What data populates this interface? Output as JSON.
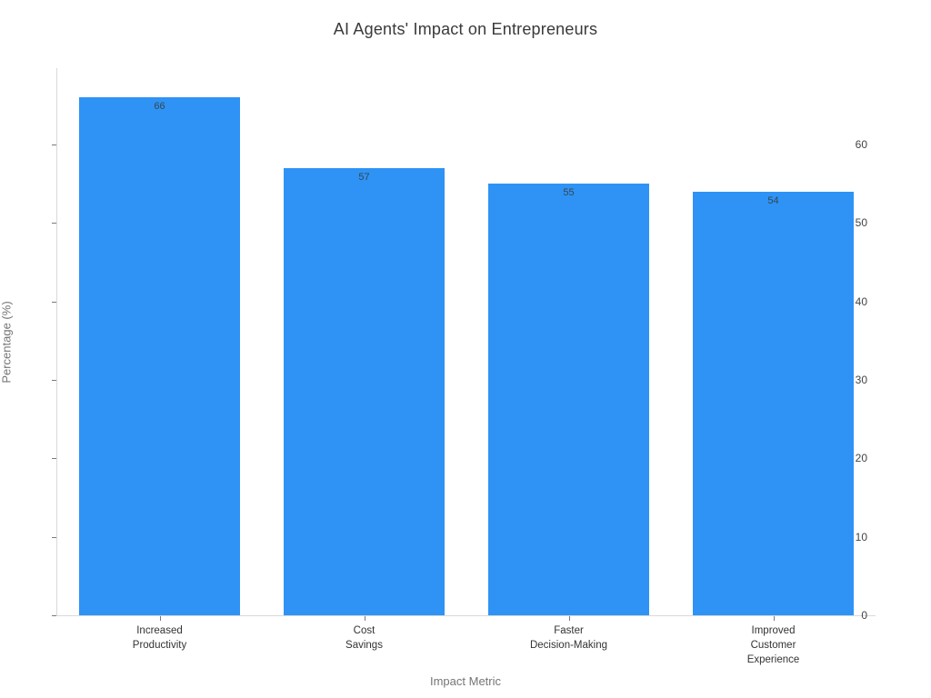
{
  "title": "AI Agents' Impact on Entrepreneurs",
  "axes": {
    "x_title": "Impact Metric",
    "y_title": "Percentage (%)"
  },
  "chart_data": {
    "type": "bar",
    "title": "AI Agents' Impact on Entrepreneurs",
    "xlabel": "Impact Metric",
    "ylabel": "Percentage (%)",
    "categories": [
      [
        "Increased",
        "Productivity"
      ],
      [
        "Cost",
        "Savings"
      ],
      [
        "Faster",
        "Decision-Making"
      ],
      [
        "Improved",
        "Customer",
        "Experience"
      ]
    ],
    "values": [
      66,
      57,
      55,
      54
    ],
    "value_labels": [
      "66",
      "57",
      "55",
      "54"
    ],
    "yticks": [
      0,
      10,
      20,
      30,
      40,
      50,
      60
    ],
    "ylim": [
      0,
      69.7
    ],
    "grid": false,
    "legend_position": "none",
    "bar_color": "#2e93f5",
    "value_label_color": "#37474f",
    "axis_line_color": "#d9d9d9",
    "tick_label_color": "#444444",
    "axis_title_color": "#757575",
    "bar_fraction_of_slot": 0.79
  }
}
